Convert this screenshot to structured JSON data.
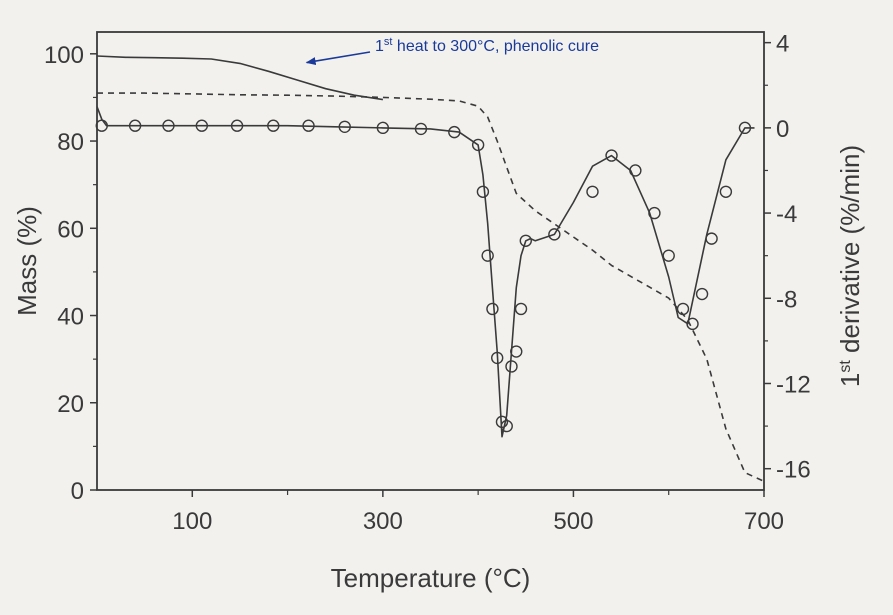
{
  "chart_data": {
    "type": "line",
    "xlabel": "Temperature (°C)",
    "ylabel_left": "Mass (%)",
    "ylabel_right_prefix": "1",
    "ylabel_right_sup": "st",
    "ylabel_right_suffix": " derivative (%/min)",
    "xlim": [
      0,
      700
    ],
    "ylim_left": [
      0,
      105
    ],
    "ylim_right": [
      -17,
      4.5
    ],
    "x_ticks": [
      100,
      300,
      500,
      700
    ],
    "y_ticks_left": [
      0,
      20,
      40,
      60,
      80,
      100
    ],
    "y_ticks_right": [
      -16,
      -12,
      -8,
      -4,
      0,
      4
    ],
    "grid": false,
    "legend": "none",
    "annotation": {
      "pre": "1",
      "sup": "st",
      "post": " heat to 300°C, phenolic cure",
      "arrow_to": [
        220,
        98
      ],
      "color": "#1a3a9a"
    },
    "series": [
      {
        "axis": "left",
        "style": "solid",
        "x": [
          0,
          30,
          60,
          90,
          120,
          150,
          180,
          210,
          240,
          270,
          300
        ],
        "y": [
          99.5,
          99.2,
          99.1,
          99.0,
          98.8,
          97.8,
          96.0,
          94.0,
          92.0,
          90.5,
          89.5
        ]
      },
      {
        "axis": "left",
        "style": "dashed",
        "x": [
          0,
          50,
          100,
          150,
          200,
          250,
          300,
          350,
          380,
          400,
          410,
          420,
          430,
          440,
          460,
          480,
          500,
          520,
          540,
          560,
          580,
          600,
          620,
          640,
          660,
          680,
          700
        ],
        "y": [
          91.0,
          91.0,
          90.8,
          90.6,
          90.5,
          90.3,
          90.0,
          89.6,
          89.2,
          88.0,
          85.5,
          80.0,
          74.0,
          68.0,
          64.0,
          61.0,
          58.0,
          55.0,
          51.5,
          49.0,
          46.5,
          44.0,
          39.0,
          30.0,
          14.0,
          4.0,
          2.0
        ]
      },
      {
        "axis": "right",
        "style": "solid-markers",
        "x": [
          0,
          5,
          10,
          50,
          100,
          150,
          200,
          250,
          300,
          350,
          380,
          400,
          405,
          410,
          415,
          420,
          425,
          430,
          435,
          440,
          445,
          450,
          455,
          460,
          480,
          500,
          520,
          540,
          560,
          580,
          600,
          610,
          620,
          640,
          660,
          680,
          690
        ],
        "y": [
          1.0,
          0.4,
          0.1,
          0.1,
          0.1,
          0.1,
          0.1,
          0.05,
          0.0,
          -0.05,
          -0.2,
          -0.8,
          -2.2,
          -4.5,
          -7.5,
          -10.5,
          -14.5,
          -13.5,
          -10.5,
          -7.5,
          -6.0,
          -5.3,
          -5.2,
          -5.3,
          -5.0,
          -3.5,
          -1.8,
          -1.3,
          -2.0,
          -4.0,
          -7.0,
          -8.9,
          -9.2,
          -5.0,
          -1.5,
          0.0,
          0.0
        ]
      }
    ],
    "markers": {
      "x": [
        5,
        40,
        75,
        110,
        147,
        185,
        222,
        260,
        300,
        340,
        375,
        400,
        405,
        410,
        415,
        420,
        425,
        430,
        435,
        440,
        445,
        450,
        480,
        520,
        540,
        565,
        585,
        600,
        615,
        625,
        635,
        645,
        660,
        680
      ],
      "y": [
        0.1,
        0.1,
        0.1,
        0.1,
        0.1,
        0.1,
        0.1,
        0.05,
        0.0,
        -0.05,
        -0.2,
        -0.8,
        -3.0,
        -6.0,
        -8.5,
        -10.8,
        -13.8,
        -14.0,
        -11.2,
        -10.5,
        -8.5,
        -5.3,
        -5.0,
        -3.0,
        -1.3,
        -2.0,
        -4.0,
        -6.0,
        -8.5,
        -9.2,
        -7.8,
        -5.2,
        -3.0,
        0.0
      ]
    }
  }
}
